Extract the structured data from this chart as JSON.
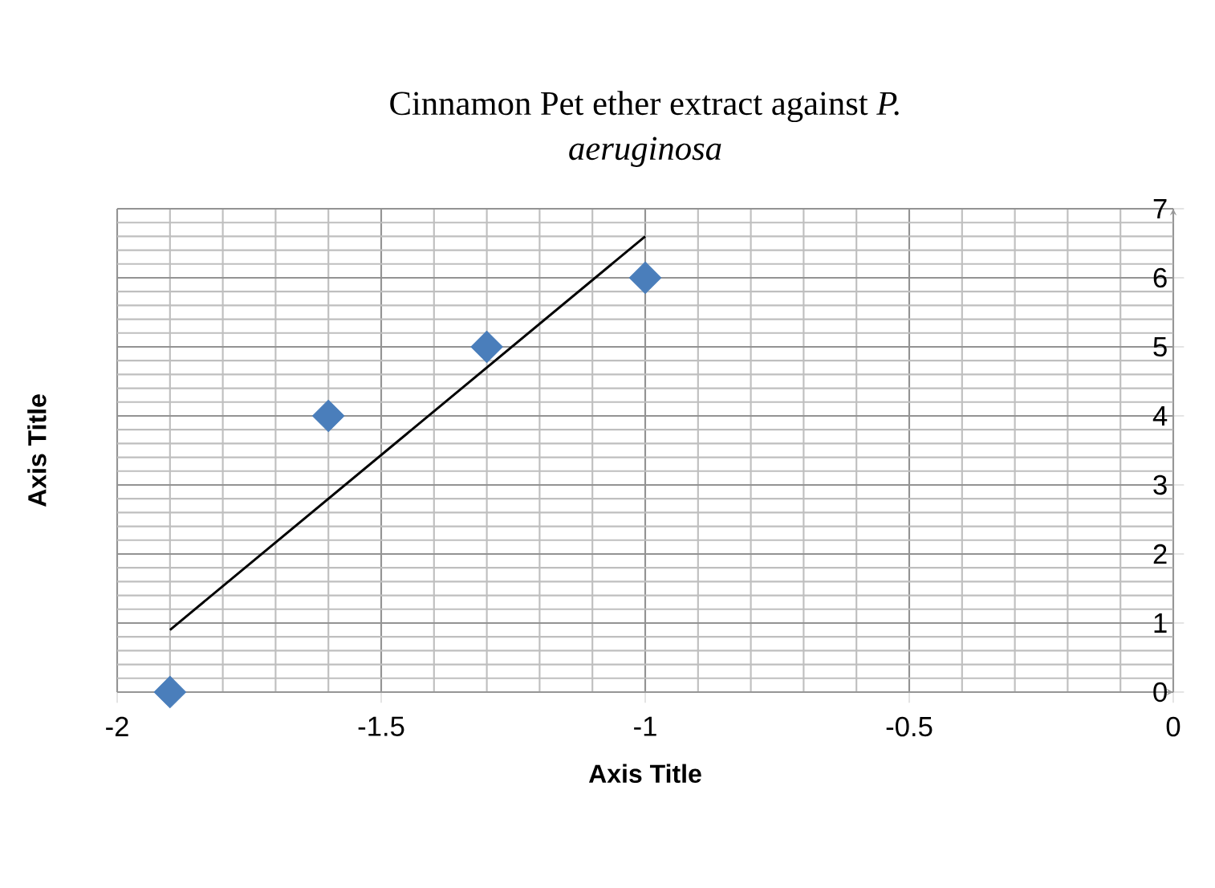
{
  "chart_data": {
    "type": "scatter",
    "title": "Cinnamon Pet ether extract against *P. aeruginosa*",
    "xlabel": "Axis Title",
    "ylabel": "Axis Title",
    "xlim": [
      -2,
      0
    ],
    "xticks": [
      -2,
      -1.5,
      -1,
      -0.5,
      0
    ],
    "ylim": [
      0,
      7
    ],
    "yticks": [
      0,
      1,
      2,
      3,
      4,
      5,
      6,
      7
    ],
    "grid": true,
    "series": [
      {
        "color": "#4a7ebb",
        "marker": "diamond",
        "x": [
          -1.9,
          -1.6,
          -1.3,
          -1.0
        ],
        "values": [
          0,
          4,
          5,
          6
        ]
      },
      {
        "type": "line",
        "color": "#000000",
        "line_style": "solid",
        "x": [
          -1.9,
          -1.0
        ],
        "values": [
          0.9,
          6.6
        ]
      }
    ]
  }
}
